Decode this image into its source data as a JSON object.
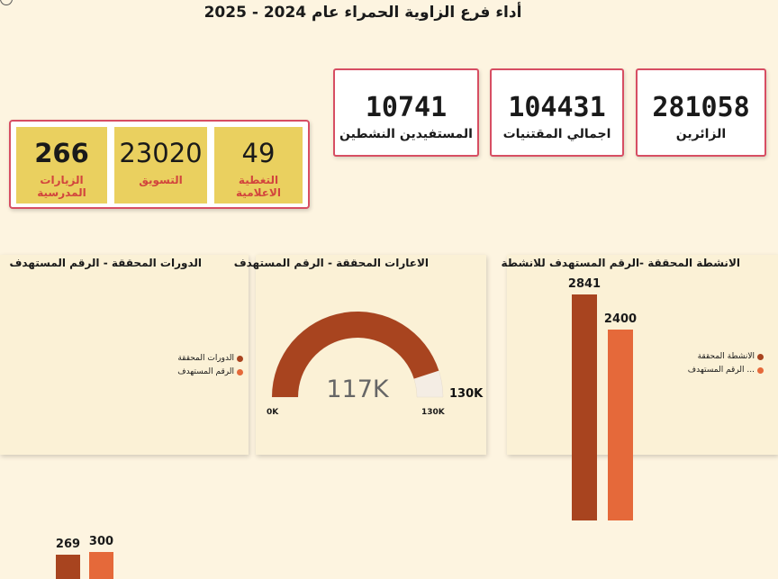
{
  "title": "أداء فرع الزاوية الحمراء عام 2024 - 2025",
  "kpis": [
    {
      "value": "281058",
      "label": "الزائرين"
    },
    {
      "value": "104431",
      "label": "اجمالي المقتنيات"
    },
    {
      "value": "10741",
      "label": "المستفيدين النشطين"
    }
  ],
  "tiles": [
    {
      "value": "49",
      "label": "التغطية الاعلامية"
    },
    {
      "value": "23020",
      "label": "التسويق"
    },
    {
      "value": "266",
      "label": "الزيارات المدرسية"
    }
  ],
  "colors": {
    "achieved": "#a8441f",
    "target": "#e5693a",
    "gauge_empty": "#f4ede4"
  },
  "chart_data": [
    {
      "type": "bar",
      "title": "الدورات المحققة - الرقم المستهدف",
      "series": [
        {
          "name": "الدورات المحققة",
          "values": [
            269
          ]
        },
        {
          "name": "الرقم المستهدف",
          "values": [
            300
          ]
        }
      ],
      "data_labels": [
        "269",
        "300"
      ],
      "legend": "right"
    },
    {
      "type": "gauge",
      "title": "الاعارات المحققة - الرقم المستهدف",
      "value": 117000,
      "min": 0,
      "max": 130000,
      "target": 130000,
      "value_label": "117K",
      "min_label": "0K",
      "max_label": "130K",
      "target_label": "130K"
    },
    {
      "type": "bar",
      "title": "الانشطة المحققة -الرقم المستهدف للانشطة",
      "series": [
        {
          "name": "الانشطة المحققة",
          "values": [
            2841
          ]
        },
        {
          "name": "... الرقم المستهدف",
          "values": [
            2400
          ]
        }
      ],
      "data_labels": [
        "2841",
        "2400"
      ],
      "legend": "right"
    }
  ]
}
